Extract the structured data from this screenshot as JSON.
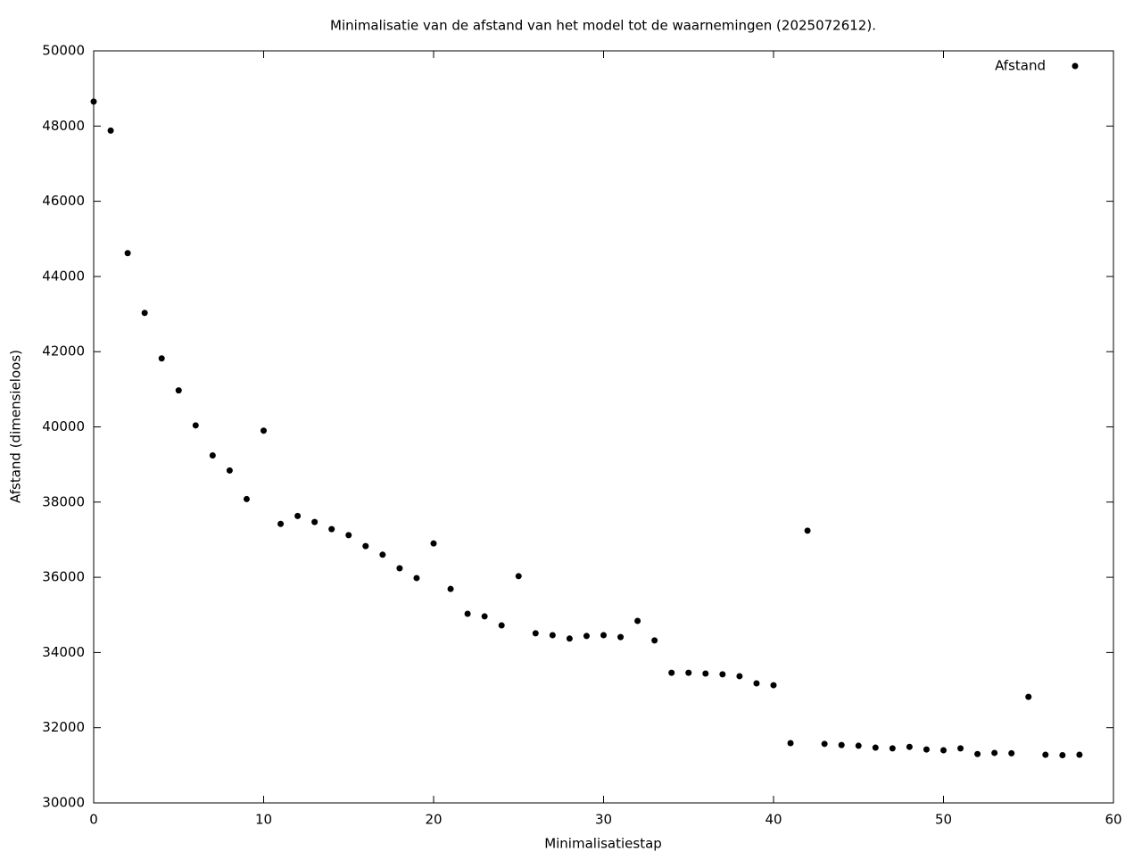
{
  "chart_data": {
    "type": "scatter",
    "title": "Minimalisatie van de afstand van het model tot de waarnemingen (2025072612).",
    "x_label": "Minimalisatiestap",
    "y_label": "Afstand (dimensieloos)",
    "x": [
      0,
      1,
      2,
      3,
      4,
      5,
      6,
      7,
      8,
      9,
      10,
      11,
      12,
      13,
      14,
      15,
      16,
      17,
      18,
      19,
      20,
      21,
      22,
      23,
      24,
      25,
      26,
      27,
      28,
      29,
      30,
      31,
      32,
      33,
      34,
      35,
      36,
      37,
      38,
      39,
      40,
      41,
      42,
      43,
      44,
      45,
      46,
      47,
      48,
      49,
      50,
      51,
      52,
      53,
      54,
      55,
      56,
      57,
      58
    ],
    "series": [
      {
        "name": "Afstand",
        "color": "#000000",
        "values": [
          48650,
          47880,
          44620,
          43030,
          41820,
          40970,
          40040,
          39240,
          38840,
          38080,
          39900,
          37420,
          37630,
          37470,
          37280,
          37120,
          36830,
          36600,
          36240,
          35980,
          36900,
          35690,
          35030,
          34960,
          34720,
          36030,
          34510,
          34460,
          34370,
          34440,
          34460,
          34410,
          34840,
          34320,
          33460,
          33460,
          33440,
          33420,
          33370,
          33180,
          33130,
          31590,
          37240,
          31570,
          31540,
          31520,
          31470,
          31450,
          31490,
          31420,
          31400,
          31450,
          31300,
          31330,
          31320,
          32820,
          31280,
          31270,
          31280
        ]
      }
    ],
    "xlim": [
      0,
      60
    ],
    "xticks": [
      0,
      10,
      20,
      30,
      40,
      50,
      60
    ],
    "ylim": [
      30000,
      50000
    ],
    "yticks": [
      30000,
      32000,
      34000,
      36000,
      38000,
      40000,
      42000,
      44000,
      46000,
      48000,
      50000
    ],
    "legend": "top-right",
    "grid": false
  }
}
